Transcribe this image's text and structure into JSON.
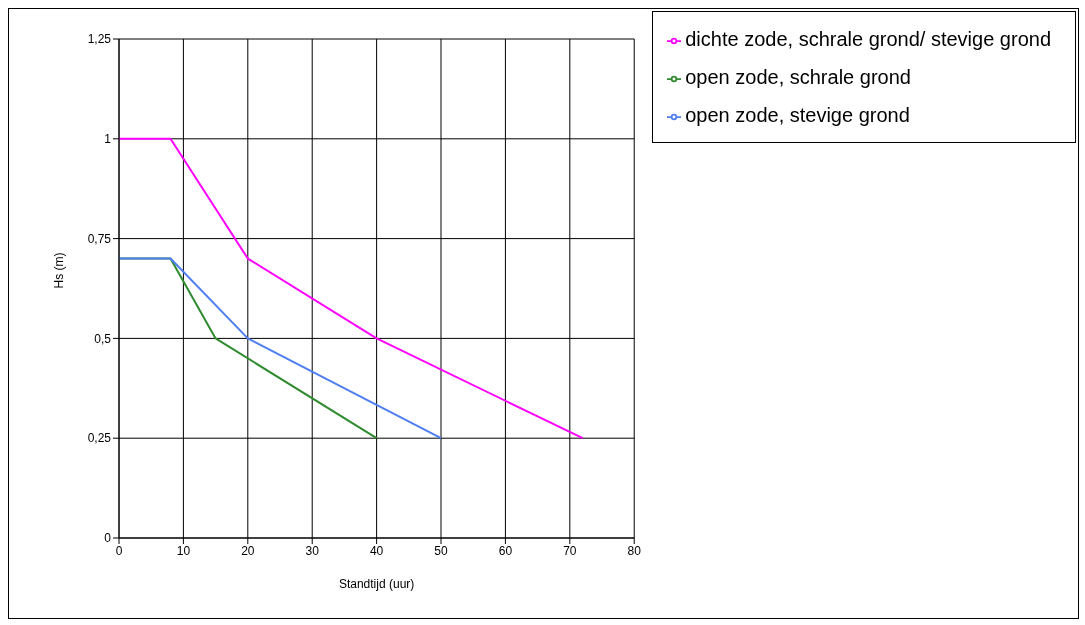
{
  "chart_data": {
    "type": "line",
    "xlabel": "Standtijd (uur)",
    "ylabel": "Hs (m)",
    "series": [
      {
        "name": "open zode, schrale grond",
        "color": "#2e8b2e",
        "x": [
          0,
          8,
          15,
          40
        ],
        "values": [
          0.7,
          0.7,
          0.5,
          0.25
        ]
      },
      {
        "name": "open zode, stevige grond",
        "color": "#4f7ff0",
        "x": [
          0,
          8,
          20,
          50
        ],
        "values": [
          0.7,
          0.7,
          0.5,
          0.25
        ]
      },
      {
        "name": "dichte zode, schrale grond/ stevige grond",
        "color": "#ff00ff",
        "x": [
          0,
          8,
          20,
          40,
          72
        ],
        "values": [
          1,
          1,
          0.7,
          0.5,
          0.25
        ]
      }
    ],
    "xlim": [
      0,
      80
    ],
    "xticks": [
      0,
      10,
      20,
      30,
      40,
      50,
      60,
      70,
      80
    ],
    "ylim": [
      0,
      1.25
    ],
    "yticks": [
      0,
      {
        "value": 0.25,
        "label": "0,25"
      },
      {
        "value": 0.5,
        "label": "0,5"
      },
      {
        "value": 0.75,
        "label": "0,75"
      },
      1,
      {
        "value": 1.25,
        "label": "1,25"
      }
    ],
    "grid": true,
    "legend": "top right",
    "marker": "none",
    "line_style": "solid"
  }
}
